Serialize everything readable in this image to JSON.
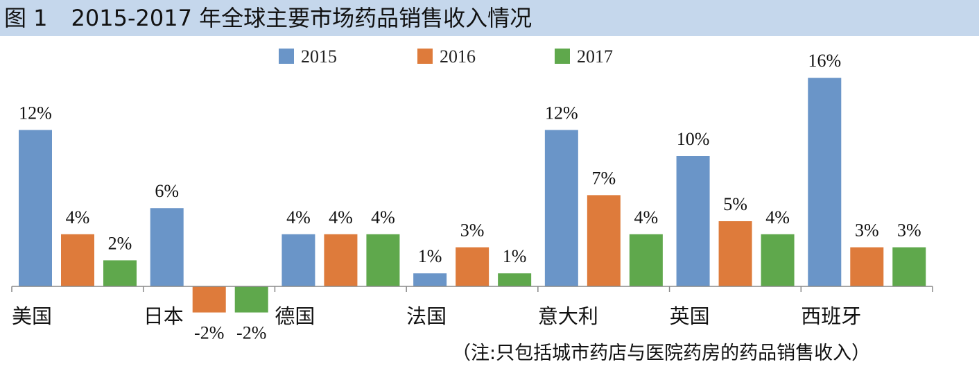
{
  "figure": {
    "label": "图 1",
    "title": "2015-2017 年全球主要市场药品销售收入情况",
    "note": "（注:只包括城市药店与医院药房的药品销售收入）"
  },
  "chart_data": {
    "type": "bar",
    "title": "2015-2017 年全球主要市场药品销售收入情况",
    "categories": [
      "美国",
      "日本",
      "德国",
      "法国",
      "意大利",
      "英国",
      "西班牙"
    ],
    "series": [
      {
        "name": "2015",
        "color": "#6a95c8",
        "values": [
          12,
          6,
          4,
          1,
          12,
          10,
          16
        ],
        "labels": [
          "12%",
          "6%",
          "4%",
          "1%",
          "12%",
          "10%",
          "16%"
        ]
      },
      {
        "name": "2016",
        "color": "#de7b3b",
        "values": [
          4,
          -2,
          4,
          3,
          7,
          5,
          3
        ],
        "labels": [
          "4%",
          "-2%",
          "4%",
          "3%",
          "7%",
          "5%",
          "3%"
        ]
      },
      {
        "name": "2017",
        "color": "#5fa84c",
        "values": [
          2,
          -2,
          4,
          1,
          4,
          4,
          3
        ],
        "labels": [
          "2%",
          "-2%",
          "4%",
          "1%",
          "4%",
          "4%",
          "3%"
        ]
      }
    ],
    "unit": "%",
    "legend": "top-center",
    "grid": false
  }
}
